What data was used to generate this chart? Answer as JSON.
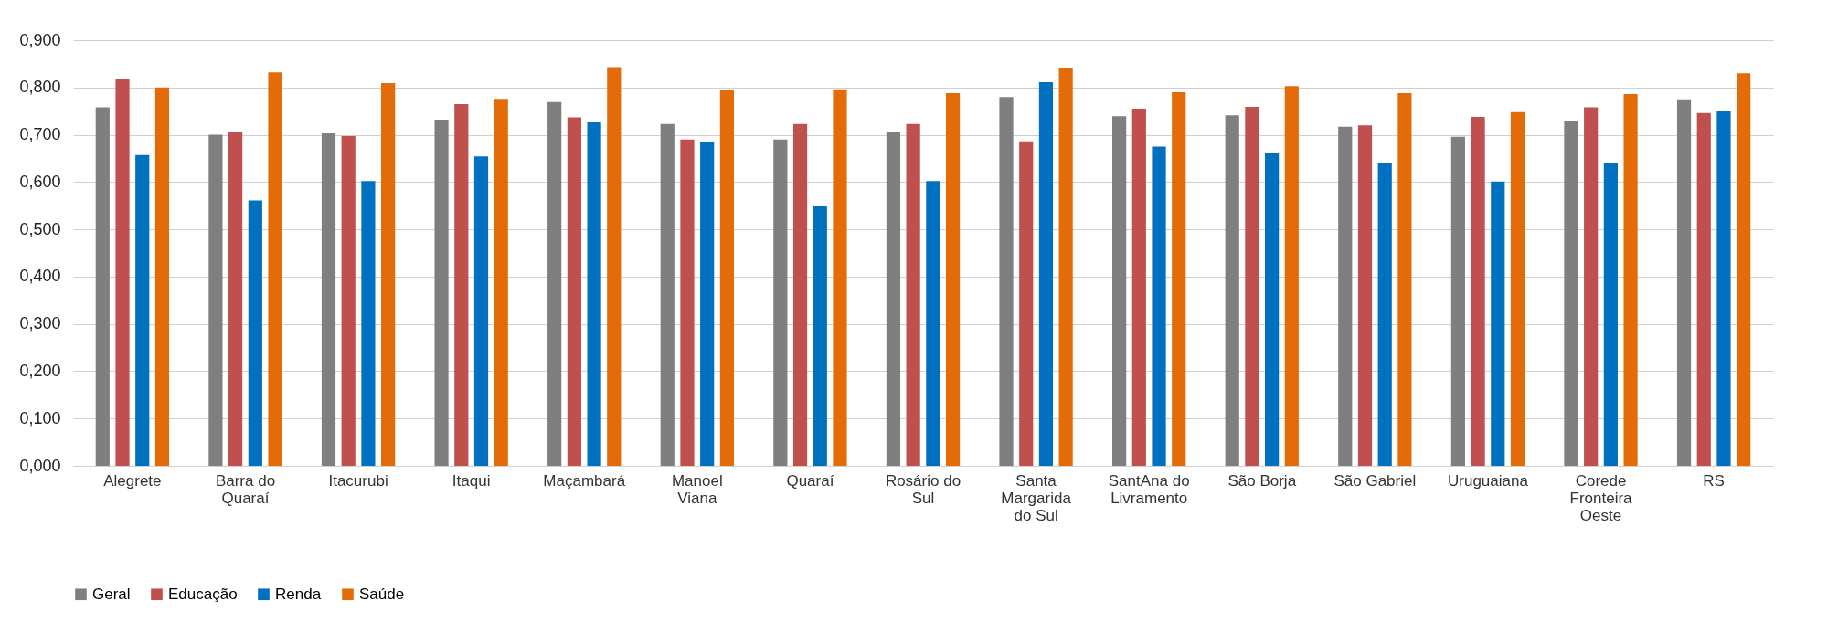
{
  "chart_data": {
    "type": "bar",
    "categories": [
      "Alegrete",
      "Barra do Quaraí",
      "Itacurubi",
      "Itaqui",
      "Maçambará",
      "Manoel Viana",
      "Quaraí",
      "Rosário do Sul",
      "Santa Margarida do Sul",
      "SantAna do Livramento",
      "São Borja",
      "São Gabriel",
      "Uruguaiana",
      "Corede Fronteira Oeste",
      "RS"
    ],
    "series": [
      {
        "name": "Geral",
        "color": "#7f7f7f",
        "values": [
          0.758,
          0.7,
          0.703,
          0.732,
          0.769,
          0.723,
          0.69,
          0.705,
          0.78,
          0.739,
          0.741,
          0.717,
          0.696,
          0.728,
          0.775
        ]
      },
      {
        "name": "Educação",
        "color": "#c0504d",
        "values": [
          0.818,
          0.707,
          0.697,
          0.765,
          0.737,
          0.69,
          0.723,
          0.723,
          0.686,
          0.755,
          0.759,
          0.72,
          0.738,
          0.758,
          0.746
        ]
      },
      {
        "name": "Renda",
        "color": "#0070c0",
        "values": [
          0.657,
          0.561,
          0.602,
          0.654,
          0.726,
          0.685,
          0.549,
          0.602,
          0.811,
          0.675,
          0.661,
          0.641,
          0.601,
          0.641,
          0.75
        ]
      },
      {
        "name": "Saúde",
        "color": "#e36c09",
        "values": [
          0.8,
          0.832,
          0.809,
          0.776,
          0.843,
          0.794,
          0.796,
          0.788,
          0.842,
          0.79,
          0.803,
          0.788,
          0.748,
          0.786,
          0.83
        ]
      }
    ],
    "ylim": [
      0,
      0.9
    ],
    "yticks": [
      {
        "value": 0,
        "label": "0,000"
      },
      {
        "value": 0.1,
        "label": "0,100"
      },
      {
        "value": 0.2,
        "label": "0,200"
      },
      {
        "value": 0.3,
        "label": "0,300"
      },
      {
        "value": 0.4,
        "label": "0,400"
      },
      {
        "value": 0.5,
        "label": "0,500"
      },
      {
        "value": 0.6,
        "label": "0,600"
      },
      {
        "value": 0.7,
        "label": "0,700"
      },
      {
        "value": 0.8,
        "label": "0,800"
      },
      {
        "value": 0.9,
        "label": "0,900"
      }
    ],
    "grid": "y",
    "legend": "bottom"
  }
}
